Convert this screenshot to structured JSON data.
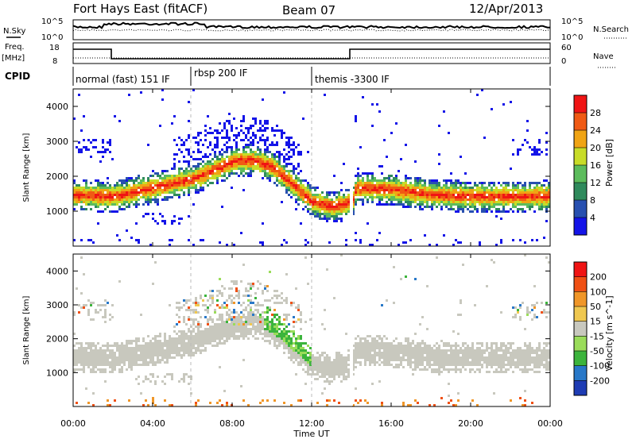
{
  "header": {
    "radar": "Fort Hays East (fitACF)",
    "beam": "Beam 07",
    "date": "12/Apr/2013"
  },
  "strip": {
    "nsky_label": "N.Sky",
    "nsearch_label": "N.Search",
    "freq_label": "Freq.",
    "freq_unit": "[MHz]",
    "nave_label": "Nave",
    "cpid_label": "CPID",
    "noise_ticks": [
      "10^5",
      "10^0"
    ],
    "freq_ticks": [
      "18",
      "8"
    ],
    "nave_ticks": [
      "60",
      "0"
    ],
    "cpid_segments": [
      {
        "label": "normal (fast) 151 IF",
        "start_h": 0,
        "end_h": 6
      },
      {
        "label": "rbsp 200 IF",
        "start_h": 6,
        "end_h": 12
      },
      {
        "label": "themis -3300 IF",
        "start_h": 12,
        "end_h": 24
      }
    ]
  },
  "chart_data": [
    {
      "type": "heatmap",
      "quantity": "power",
      "ylabel": "Slant Range [km]",
      "ylim": [
        0,
        4500
      ],
      "yticks": [
        "1000",
        "2000",
        "3000",
        "4000"
      ],
      "xlim": [
        0,
        24
      ],
      "colorbar_label": "Power [dB]",
      "colorbar_ticks": [
        "4",
        "8",
        "12",
        "16",
        "20",
        "24",
        "28"
      ],
      "colors": [
        "#1414e8",
        "#2850b0",
        "#2f8a5c",
        "#5cbc5c",
        "#c8dc28",
        "#f0a414",
        "#f05a14",
        "#f01414"
      ],
      "color_ranges": [
        [
          0,
          4
        ],
        [
          4,
          8
        ],
        [
          8,
          12
        ],
        [
          12,
          16
        ],
        [
          16,
          20
        ],
        [
          20,
          24
        ],
        [
          24,
          28
        ],
        [
          28,
          32
        ]
      ],
      "main_echo_band_km": [
        [
          0,
          1500
        ],
        [
          2,
          1450
        ],
        [
          4,
          1700
        ],
        [
          6,
          1950
        ],
        [
          7,
          2200
        ],
        [
          8,
          2450
        ],
        [
          9,
          2500
        ],
        [
          10,
          2300
        ],
        [
          11,
          1800
        ],
        [
          12,
          1300
        ],
        [
          13,
          1150
        ],
        [
          14,
          1300
        ],
        [
          14.2,
          1700
        ],
        [
          16,
          1650
        ],
        [
          18,
          1500
        ],
        [
          20,
          1450
        ],
        [
          22,
          1450
        ],
        [
          24,
          1450
        ]
      ]
    },
    {
      "type": "heatmap",
      "quantity": "velocity",
      "ylabel": "Slant Range [km]",
      "ylim": [
        0,
        4500
      ],
      "yticks": [
        "1000",
        "2000",
        "3000",
        "4000"
      ],
      "xlim": [
        0,
        24
      ],
      "colorbar_label": "Velocity [m s^-1]",
      "colorbar_ticks": [
        "200",
        "100",
        "50",
        "15",
        "-15",
        "-50",
        "-100",
        "-200"
      ],
      "colors": [
        "#1e3cb4",
        "#2878c8",
        "#3cb43c",
        "#9adc5a",
        "#c8c8be",
        "#f0c850",
        "#f09628",
        "#f05014",
        "#f01414"
      ],
      "color_ranges": [
        [
          200,
          250
        ],
        [
          100,
          200
        ],
        [
          50,
          100
        ],
        [
          15,
          50
        ],
        [
          -15,
          15
        ],
        [
          -50,
          -15
        ],
        [
          -100,
          -50
        ],
        [
          -200,
          -100
        ],
        [
          -250,
          -200
        ]
      ]
    }
  ],
  "xaxis": {
    "label": "Time UT",
    "ticks": [
      "00:00",
      "04:00",
      "08:00",
      "12:00",
      "16:00",
      "20:00",
      "00:00"
    ]
  }
}
